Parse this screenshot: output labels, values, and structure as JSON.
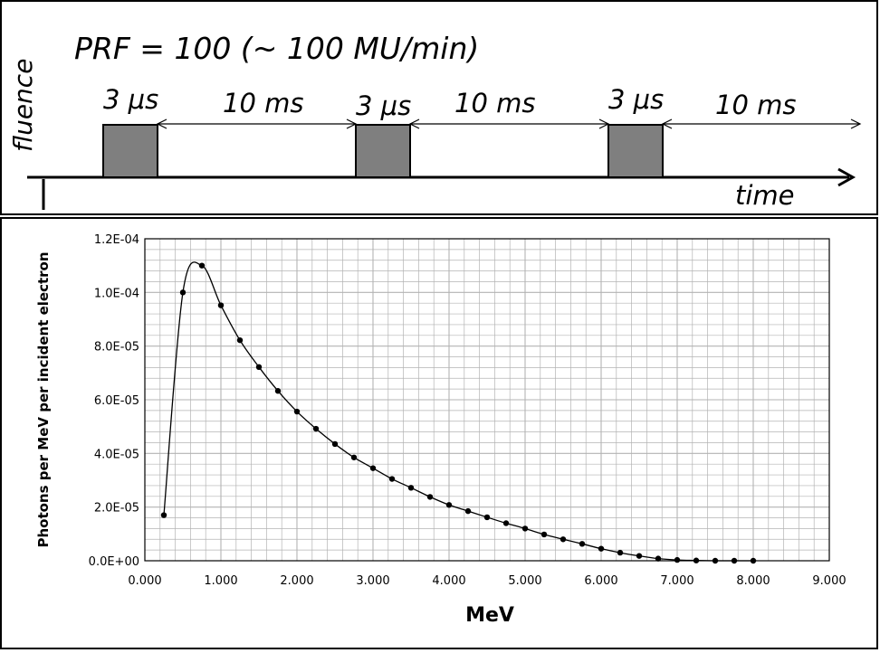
{
  "pulse_diagram": {
    "title": "PRF = 100 (~ 100 MU/min)",
    "y_axis_label": "fluence",
    "x_axis_label": "time",
    "pulse_width_labels": [
      "3 μs",
      "3 μs",
      "3 μs"
    ],
    "interval_labels": [
      "10 ms",
      "10 ms",
      "10 ms"
    ],
    "pulse_color": "#7f7f7f"
  },
  "chart_data": {
    "type": "scatter",
    "xlabel": "MeV",
    "ylabel": "Photons per MeV per incident electron",
    "xlim": [
      0,
      9
    ],
    "ylim": [
      0,
      0.00012
    ],
    "x_ticks": [
      0,
      1,
      2,
      3,
      4,
      5,
      6,
      7,
      8,
      9
    ],
    "x_tick_labels": [
      "0.000",
      "1.000",
      "2.000",
      "3.000",
      "4.000",
      "5.000",
      "6.000",
      "7.000",
      "8.000",
      "9.000"
    ],
    "y_ticks": [
      0,
      2e-05,
      4e-05,
      6e-05,
      8e-05,
      0.0001,
      0.00012
    ],
    "y_tick_labels": [
      "0.0E+00",
      "2.0E-05",
      "4.0E-05",
      "6.0E-05",
      "8.0E-05",
      "1.0E-04",
      "1.2E-04"
    ],
    "grid": true,
    "line": true,
    "x": [
      0.25,
      0.5,
      0.75,
      1.0,
      1.25,
      1.5,
      1.75,
      2.0,
      2.25,
      2.5,
      2.75,
      3.0,
      3.25,
      3.5,
      3.75,
      4.0,
      4.25,
      4.5,
      4.75,
      5.0,
      5.25,
      5.5,
      5.75,
      6.0,
      6.25,
      6.5,
      6.75,
      7.0,
      7.25,
      7.5,
      7.75,
      8.0
    ],
    "y": [
      1.7e-05,
      0.0001,
      0.00011,
      9.52e-05,
      8.22e-05,
      7.22e-05,
      6.33e-05,
      5.56e-05,
      4.92e-05,
      4.35e-05,
      3.85e-05,
      3.45e-05,
      3.05e-05,
      2.72e-05,
      2.38e-05,
      2.08e-05,
      1.85e-05,
      1.62e-05,
      1.4e-05,
      1.2e-05,
      9.8e-06,
      8e-06,
      6.3e-06,
      4.5e-06,
      3e-06,
      1.8e-06,
      8e-07,
      3e-07,
      1e-07,
      0.0,
      0.0,
      0.0
    ],
    "colors": {
      "line": "#000000",
      "marker": "#000000",
      "grid": "#b3b3b3"
    }
  }
}
